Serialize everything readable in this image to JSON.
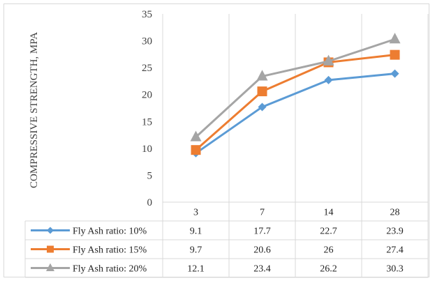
{
  "chart_data": {
    "type": "line",
    "title": "",
    "xlabel": "",
    "ylabel": "COMPRESSIVE STRENGTH, MPA",
    "categories": [
      "3",
      "7",
      "14",
      "28"
    ],
    "ylim": [
      0,
      35
    ],
    "yticks": [
      0,
      5,
      10,
      15,
      20,
      25,
      30,
      35
    ],
    "grid": "vertical",
    "legend": "data-table",
    "series": [
      {
        "name": "Fly Ash ratio: 10%",
        "values": [
          9.1,
          17.7,
          22.7,
          23.9
        ],
        "display": [
          "9.1",
          "17.7",
          "22.7",
          "23.9"
        ],
        "color": "#5b9bd5",
        "marker": "diamond"
      },
      {
        "name": "Fly Ash ratio: 15%",
        "values": [
          9.7,
          20.6,
          26,
          27.4
        ],
        "display": [
          "9.7",
          "20.6",
          "26",
          "27.4"
        ],
        "color": "#ed7d31",
        "marker": "square"
      },
      {
        "name": "Fly Ash ratio: 20%",
        "values": [
          12.1,
          23.4,
          26.2,
          30.3
        ],
        "display": [
          "12.1",
          "23.4",
          "26.2",
          "30.3"
        ],
        "color": "#a5a5a5",
        "marker": "triangle"
      }
    ]
  }
}
